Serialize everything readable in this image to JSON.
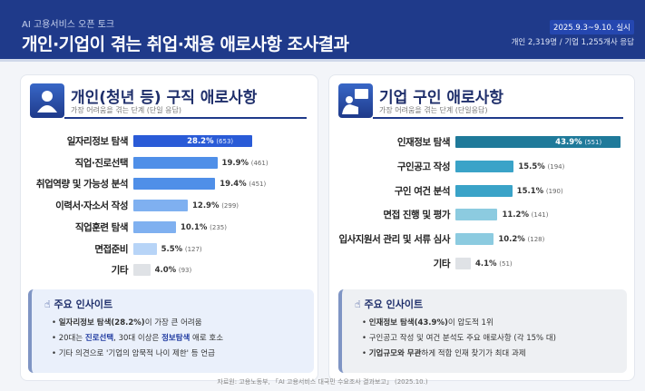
{
  "header": {
    "supertitle": "AI 고용서비스 오픈 토크",
    "title": "개인·기업이 겪는 취업·채용 애로사항 조사결과",
    "date": "2025.9.3~9.10. 실시",
    "respondents": "개인 2,319명 / 기업 1,255개사 응답"
  },
  "chart_data": [
    {
      "type": "bar",
      "orientation": "horizontal",
      "title": "개인(청년 등) 구직 애로사항",
      "subtitle": "가장 어려움을 겪는 단계 (단일 응답)",
      "categories": [
        "일자리정보 탐색",
        "직업·진로선택",
        "취업역량 및 가능성 분석",
        "이력서·자소서 작성",
        "직업훈련 탐색",
        "면접준비",
        "기타"
      ],
      "values": [
        28.2,
        19.9,
        19.4,
        12.9,
        10.1,
        5.5,
        4.0
      ],
      "counts": [
        653,
        461,
        451,
        299,
        235,
        127,
        93
      ],
      "value_labels": [
        "28.2%",
        "19.9%",
        "19.4%",
        "12.9%",
        "10.1%",
        "5.5%",
        "4.0%"
      ],
      "count_labels": [
        "(653)",
        "(461)",
        "(451)",
        "(299)",
        "(235)",
        "(127)",
        "(93)"
      ],
      "colors": [
        "#2a5bd7",
        "#4f8fe8",
        "#4f8fe8",
        "#7fb0f0",
        "#7fb0f0",
        "#b7d4f7",
        "#dfe2e6"
      ]
    },
    {
      "type": "bar",
      "orientation": "horizontal",
      "title": "기업 구인 애로사항",
      "subtitle": "가장 어려움을 겪는 단계 (단일응답)",
      "categories": [
        "인재정보 탐색",
        "구인공고 작성",
        "구인 여건 분석",
        "면접 진행 및 평가",
        "입사지원서 관리 및 서류 심사",
        "기타"
      ],
      "values": [
        43.9,
        15.5,
        15.1,
        11.2,
        10.2,
        4.1
      ],
      "counts": [
        551,
        194,
        190,
        141,
        128,
        51
      ],
      "value_labels": [
        "43.9%",
        "15.5%",
        "15.1%",
        "11.2%",
        "10.2%",
        "4.1%"
      ],
      "count_labels": [
        "(551)",
        "(194)",
        "(190)",
        "(141)",
        "(128)",
        "(51)"
      ],
      "colors": [
        "#1f7a9a",
        "#3aa3c8",
        "#3aa3c8",
        "#8ccbe0",
        "#8ccbe0",
        "#dfe2e6"
      ]
    }
  ],
  "insights": {
    "heading": "주요 인사이트",
    "left": [
      {
        "bold": "일자리정보 탐색(28.2%)",
        "rest": "이 가장 큰 어려움"
      },
      {
        "pre": "20대는 ",
        "b1": "진로선택",
        "mid": ", 30대 이상은 ",
        "b2": "정보탐색",
        "post": " 애로 호소"
      },
      {
        "text": "기타 의견으로 '기업의 암묵적 나이 제한' 등 언급"
      }
    ],
    "right": [
      {
        "bold": "인재정보 탐색(43.9%)",
        "rest": "이 압도적 1위"
      },
      {
        "text": "구인공고 작성 및 여건 분석도 주요 애로사항 (각 15% 대)"
      },
      {
        "bold": "기업규모와 무관",
        "rest": "하게 적합 인재 찾기가 최대 과제"
      }
    ]
  },
  "source": "자료원: 고용노동부, 「AI 고용서비스 대국민 수요조사 결과보고」 (2025.10.)"
}
